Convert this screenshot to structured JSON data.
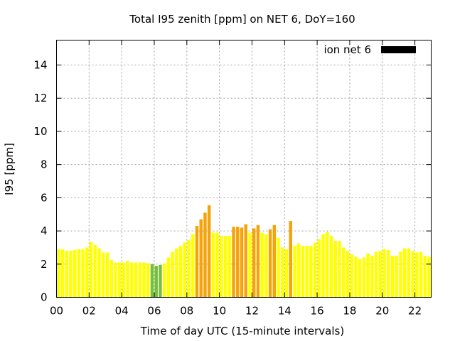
{
  "chart_data": {
    "type": "bar",
    "title": "Total I95 zenith [ppm] on NET 6, DoY=160",
    "xlabel": "Time of day UTC (15-minute intervals)",
    "ylabel": "I95 [ppm]",
    "xlim": [
      0,
      23
    ],
    "ylim": [
      0,
      15.5
    ],
    "x_ticks": [
      0,
      2,
      4,
      6,
      8,
      10,
      12,
      14,
      16,
      18,
      20,
      22
    ],
    "x_tick_labels": [
      "00",
      "02",
      "04",
      "06",
      "08",
      "10",
      "12",
      "14",
      "16",
      "18",
      "20",
      "22"
    ],
    "y_ticks": [
      0,
      2,
      4,
      6,
      8,
      10,
      12,
      14
    ],
    "y_tick_labels": [
      "0",
      "2",
      "4",
      "6",
      "8",
      "10",
      "12",
      "14"
    ],
    "grid": true,
    "legend_position": "top-right",
    "series": [
      {
        "name": "ion net 6",
        "legend_color": "#000000",
        "interval_hours": 0.25,
        "values": [
          2.9,
          2.9,
          2.8,
          2.8,
          2.85,
          2.9,
          2.9,
          3.0,
          3.35,
          3.15,
          2.95,
          2.7,
          2.7,
          2.25,
          2.1,
          2.1,
          2.1,
          2.2,
          2.1,
          2.1,
          2.1,
          2.1,
          2.05,
          2.0,
          1.9,
          1.95,
          2.05,
          2.4,
          2.75,
          2.95,
          3.1,
          3.3,
          3.45,
          3.8,
          4.3,
          4.7,
          5.1,
          5.55,
          3.9,
          3.9,
          3.7,
          3.7,
          3.7,
          4.25,
          4.25,
          4.2,
          4.4,
          3.9,
          4.15,
          4.35,
          3.9,
          3.8,
          4.1,
          4.35,
          3.6,
          3.0,
          2.9,
          4.6,
          3.1,
          3.25,
          3.1,
          3.1,
          3.1,
          3.3,
          3.5,
          3.8,
          3.95,
          3.7,
          3.4,
          3.4,
          3.0,
          2.8,
          2.6,
          2.45,
          2.3,
          2.4,
          2.65,
          2.5,
          2.75,
          2.8,
          2.9,
          2.85,
          2.5,
          2.5,
          2.75,
          2.95,
          2.95,
          2.8,
          2.7,
          2.75,
          2.5,
          2.45
        ]
      }
    ],
    "color_scale": [
      {
        "max": 2.0,
        "color": "#76bf3c"
      },
      {
        "max": 4.0,
        "color": "#ffff00"
      },
      {
        "max": 6.0,
        "color": "#f5a30a"
      }
    ]
  }
}
